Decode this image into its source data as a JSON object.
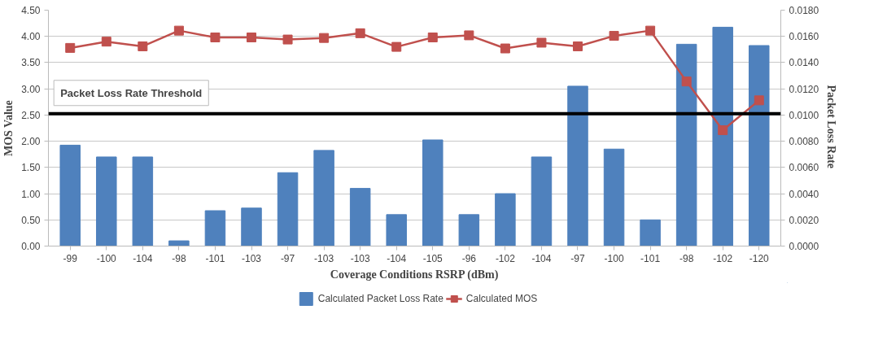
{
  "chart_data": {
    "type": "bar",
    "xlabel": "Coverage Conditions RSRP (dBm)",
    "ylabel": "MOS Value",
    "y2label": "Packet  Loss Rate",
    "categories": [
      "-99",
      "-100",
      "-104",
      "-98",
      "-101",
      "-103",
      "-97",
      "-103",
      "-103",
      "-104",
      "-105",
      "-96",
      "-102",
      "-104",
      "-97",
      "-100",
      "-101",
      "-98",
      "-102",
      "-120"
    ],
    "series": [
      {
        "name": "Calculated Packet Loss Rate",
        "axis": "y2",
        "color": "#4f81bd",
        "values": [
          0.0077,
          0.0068,
          0.0068,
          0.0004,
          0.0027,
          0.0029,
          0.0056,
          0.0073,
          0.0044,
          0.0024,
          0.0081,
          0.0024,
          0.004,
          0.0068,
          0.0122,
          0.0074,
          0.002,
          0.0154,
          0.0167,
          0.0153
        ]
      },
      {
        "name": "Calculated MOS",
        "type": "line",
        "color": "#c0504d",
        "values": [
          3.78,
          3.9,
          3.81,
          4.11,
          3.98,
          3.98,
          3.94,
          3.97,
          4.06,
          3.8,
          3.98,
          4.02,
          3.77,
          3.88,
          3.81,
          4.01,
          4.11,
          3.14,
          2.21,
          2.78
        ]
      }
    ],
    "ylim": [
      0,
      4.5
    ],
    "yticks": [
      {
        "value": 0,
        "label": "0.00"
      },
      {
        "value": 0.5,
        "label": "0.50"
      },
      {
        "value": 1,
        "label": "1.00"
      },
      {
        "value": 1.5,
        "label": "1.50"
      },
      {
        "value": 2,
        "label": "2.00"
      },
      {
        "value": 2.5,
        "label": "2.50"
      },
      {
        "value": 3,
        "label": "3.00"
      },
      {
        "value": 3.5,
        "label": "3.50"
      },
      {
        "value": 4,
        "label": "4.00"
      },
      {
        "value": 4.5,
        "label": "4.50"
      }
    ],
    "y2lim": [
      0,
      0.018
    ],
    "y2ticks": [
      {
        "value": 0,
        "label": "0.0000"
      },
      {
        "value": 0.002,
        "label": "0.0020"
      },
      {
        "value": 0.004,
        "label": "0.0040"
      },
      {
        "value": 0.006,
        "label": "0.0060"
      },
      {
        "value": 0.008,
        "label": "0.0080"
      },
      {
        "value": 0.01,
        "label": "0.0100"
      },
      {
        "value": 0.012,
        "label": "0.0120"
      },
      {
        "value": 0.014,
        "label": "0.0140"
      },
      {
        "value": 0.016,
        "label": "0.0160"
      },
      {
        "value": 0.018,
        "label": "0.0180"
      }
    ],
    "ref_lines": [
      {
        "axis": "y2",
        "value": 0.0101,
        "label": "Packet Loss Rate Threshold",
        "color": "#000000"
      }
    ],
    "grid": "y",
    "legend": "bottom",
    "marker": "square",
    "line_style": "solid"
  }
}
